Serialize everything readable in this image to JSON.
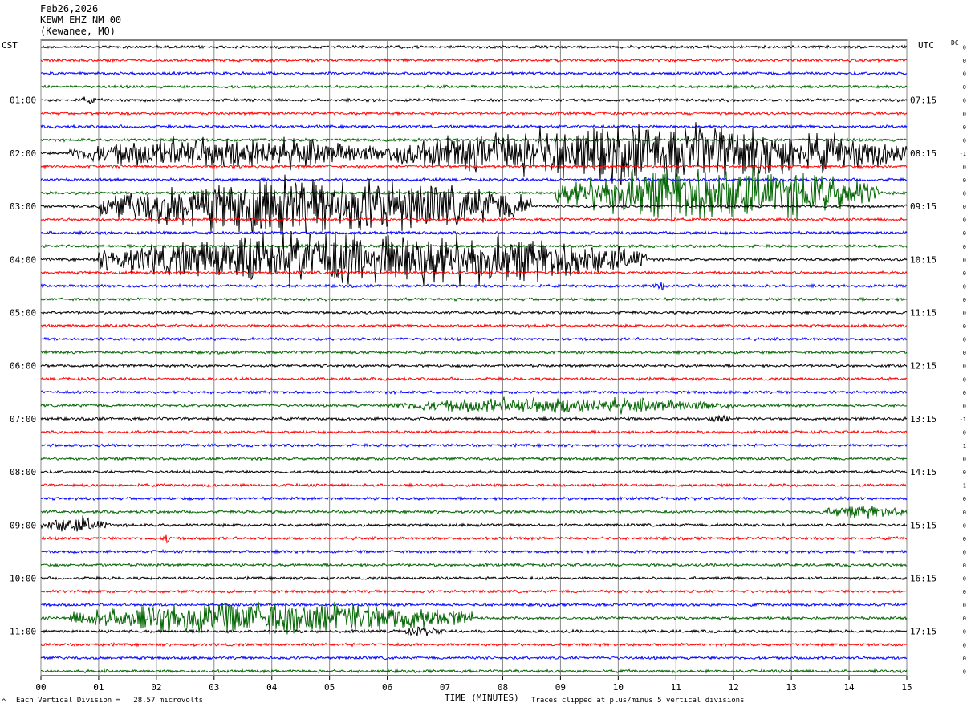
{
  "header": {
    "date": "Feb26,2026",
    "station": "KEWM EHZ NM 00",
    "location": "(Kewanee, MO)"
  },
  "left_axis_label": "CST",
  "right_axis_label": "UTC",
  "dc_label": "DC",
  "footer": {
    "scale": "Each Vertical Division =   28.57 microvolts",
    "xlabel": "TIME (MINUTES)",
    "clip": "Traces clipped at plus/minus 5 vertical divisions",
    "corner_mark": "^"
  },
  "chart_data": {
    "type": "line",
    "title": "KEWM EHZ NM 00",
    "xlabel": "TIME (MINUTES)",
    "xlim": [
      0,
      15
    ],
    "x_ticks": [
      "00",
      "01",
      "02",
      "03",
      "04",
      "05",
      "06",
      "07",
      "08",
      "09",
      "10",
      "11",
      "12",
      "13",
      "14",
      "15"
    ],
    "traces_per_hour": 4,
    "num_traces": 48,
    "trace_colors": [
      "#000000",
      "#ff0000",
      "#0000ff",
      "#006400"
    ],
    "left_hour_labels": [
      "01:00",
      "02:00",
      "03:00",
      "04:00",
      "05:00",
      "06:00",
      "07:00",
      "08:00",
      "09:00",
      "10:00",
      "11:00"
    ],
    "right_hour_labels": [
      "07:15",
      "08:15",
      "09:15",
      "10:15",
      "11:15",
      "12:15",
      "13:15",
      "14:15",
      "15:15",
      "16:15",
      "17:15"
    ],
    "dc_offsets": [
      "0",
      "0",
      "0",
      "0",
      "0",
      "0",
      "0",
      "0",
      "-1",
      "0",
      "0",
      "0",
      "0",
      "0",
      "0",
      "0",
      "0",
      "0",
      "0",
      "0",
      "0",
      "0",
      "0",
      "0",
      "0",
      "0",
      "0",
      "0",
      "-1",
      "0",
      "1",
      "0",
      "0",
      "-1",
      "0",
      "0",
      "0",
      "0",
      "0",
      "0",
      "0",
      "0",
      "0",
      "0",
      "0",
      "0",
      "0",
      "0"
    ],
    "events": [
      {
        "trace": 4,
        "start_min": 0.6,
        "end_min": 1.0,
        "amplitude_div": 0.6
      },
      {
        "trace": 8,
        "start_min": 0.5,
        "end_min": 6.0,
        "amplitude_div": 3
      },
      {
        "trace": 8,
        "start_min": 6.0,
        "end_min": 15.0,
        "amplitude_div": 5
      },
      {
        "trace": 11,
        "start_min": 8.9,
        "end_min": 14.5,
        "amplitude_div": 5
      },
      {
        "trace": 12,
        "start_min": 1.0,
        "end_min": 8.5,
        "amplitude_div": 5
      },
      {
        "trace": 16,
        "start_min": 1.0,
        "end_min": 10.5,
        "amplitude_div": 5
      },
      {
        "trace": 18,
        "start_min": 10.6,
        "end_min": 10.9,
        "amplitude_div": 1
      },
      {
        "trace": 27,
        "start_min": 6.0,
        "end_min": 12.0,
        "amplitude_div": 1.5
      },
      {
        "trace": 28,
        "start_min": 11.5,
        "end_min": 12.0,
        "amplitude_div": 0.7
      },
      {
        "trace": 35,
        "start_min": 13.5,
        "end_min": 15.0,
        "amplitude_div": 1.2
      },
      {
        "trace": 36,
        "start_min": 0.0,
        "end_min": 1.2,
        "amplitude_div": 1.5
      },
      {
        "trace": 37,
        "start_min": 2.1,
        "end_min": 2.3,
        "amplitude_div": 1
      },
      {
        "trace": 43,
        "start_min": 0.5,
        "end_min": 7.5,
        "amplitude_div": 3
      },
      {
        "trace": 44,
        "start_min": 6.2,
        "end_min": 7.0,
        "amplitude_div": 0.8
      }
    ]
  }
}
